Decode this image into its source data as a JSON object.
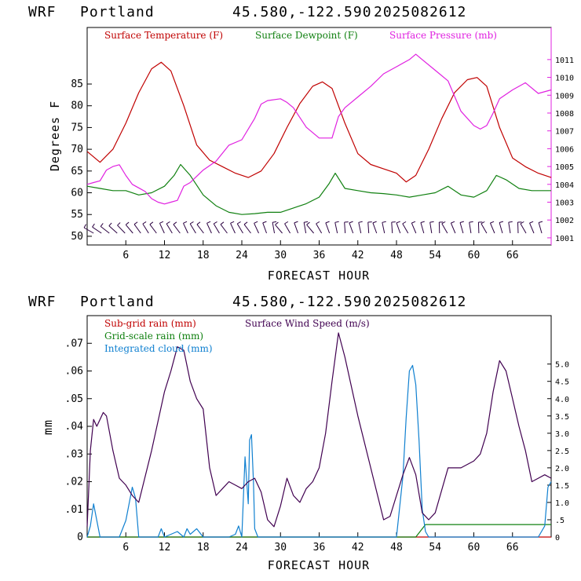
{
  "chart_data": [
    {
      "type": "line",
      "header": {
        "model": "WRF",
        "location": "Portland",
        "coords": "45.580,-122.590",
        "run": "2025082612"
      },
      "xlabel": "FORECAST HOUR",
      "ylabel": "Degrees F",
      "xlim": [
        0,
        72
      ],
      "ylim": [
        48,
        98
      ],
      "y2lim": [
        1000.6,
        1012.8
      ],
      "xticks": [
        6,
        12,
        18,
        24,
        30,
        36,
        42,
        48,
        54,
        60,
        66
      ],
      "yticks": [
        50,
        55,
        60,
        65,
        70,
        75,
        80,
        85
      ],
      "y2ticks": [
        1001,
        1002,
        1003,
        1004,
        1005,
        1006,
        1007,
        1008,
        1009,
        1010,
        1011
      ],
      "series": [
        {
          "name": "Surface Temperature (F)",
          "color": "#c00000",
          "axis": "left",
          "x": [
            0,
            2,
            4,
            6,
            8,
            10,
            11.5,
            13,
            15,
            17,
            19,
            21,
            23,
            25,
            27,
            29,
            31,
            33,
            35,
            36.5,
            38,
            40,
            42,
            44,
            46,
            48,
            49.5,
            51,
            53,
            55,
            57,
            59,
            60.5,
            62,
            64,
            66,
            68,
            70,
            72
          ],
          "values": [
            69.5,
            67,
            70,
            76,
            83,
            88.5,
            90,
            88,
            80,
            71,
            67.5,
            66,
            64.5,
            63.5,
            65,
            69,
            75,
            80.5,
            84.5,
            85.5,
            84,
            76,
            69,
            66.5,
            65.5,
            64.5,
            62.5,
            64,
            70,
            77,
            83,
            86,
            86.5,
            84.5,
            75,
            68,
            66,
            64.5,
            63.5
          ]
        },
        {
          "name": "Surface Dewpoint (F)",
          "color": "#108010",
          "axis": "left",
          "x": [
            0,
            2,
            4,
            6,
            8,
            10,
            12,
            13.5,
            14.5,
            16,
            18,
            20,
            22,
            24,
            26,
            28,
            30,
            32,
            34,
            36,
            37.5,
            38.5,
            40,
            42,
            44,
            46,
            48,
            50,
            52,
            54,
            56,
            58,
            60,
            62,
            63.5,
            65,
            67,
            69,
            72
          ],
          "values": [
            61.5,
            61,
            60.5,
            60.5,
            59.5,
            60,
            61.5,
            64,
            66.5,
            64,
            59.5,
            57,
            55.5,
            55,
            55.2,
            55.5,
            55.5,
            56.5,
            57.5,
            59,
            62,
            64.5,
            61,
            60.5,
            60,
            59.8,
            59.5,
            59,
            59.5,
            60,
            61.5,
            59.5,
            59,
            60.5,
            64,
            63,
            61,
            60.5,
            60.5
          ]
        },
        {
          "name": "Surface Pressure (mb)",
          "color": "#e020e0",
          "axis": "right",
          "x": [
            0,
            1,
            2,
            3,
            4,
            5,
            6,
            7,
            8,
            9,
            10,
            11,
            12,
            13,
            14,
            15,
            16,
            18,
            20,
            22,
            24,
            26,
            27,
            28,
            30,
            31,
            32,
            34,
            36,
            38,
            39,
            40,
            42,
            44,
            46,
            48,
            50,
            51,
            52,
            54,
            56,
            58,
            60,
            61,
            62,
            63,
            64,
            66,
            68,
            70,
            72
          ],
          "values": [
            1004,
            1004.1,
            1004.2,
            1004.8,
            1005,
            1005.1,
            1004.5,
            1004,
            1003.8,
            1003.6,
            1003.2,
            1003,
            1002.9,
            1003,
            1003.1,
            1003.9,
            1004.1,
            1004.8,
            1005.3,
            1006.2,
            1006.5,
            1007.7,
            1008.5,
            1008.7,
            1008.8,
            1008.6,
            1008.3,
            1007.2,
            1006.6,
            1006.6,
            1007.8,
            1008.3,
            1008.9,
            1009.5,
            1010.2,
            1010.6,
            1011.0,
            1011.3,
            1011.0,
            1010.4,
            1009.8,
            1008.1,
            1007.3,
            1007.1,
            1007.3,
            1008,
            1008.8,
            1009.3,
            1009.7,
            1009.1,
            1009.3
          ]
        }
      ],
      "wind_barbs": "row of wind barbs along the bottom of the panel"
    },
    {
      "type": "line",
      "header": {
        "model": "WRF",
        "location": "Portland",
        "coords": "45.580,-122.590",
        "run": "2025082612"
      },
      "xlabel": "FORECAST HOUR",
      "ylabel": "mm",
      "xlim": [
        0,
        72
      ],
      "ylim": [
        0,
        0.08
      ],
      "y2lim": [
        0,
        6.4
      ],
      "xticks": [
        6,
        12,
        18,
        24,
        30,
        36,
        42,
        48,
        54,
        60,
        66
      ],
      "yticks": [
        {
          "v": 0,
          "label": "0"
        },
        {
          "v": 0.01,
          "label": ".01"
        },
        {
          "v": 0.02,
          "label": ".02"
        },
        {
          "v": 0.03,
          "label": ".03"
        },
        {
          "v": 0.04,
          "label": ".04"
        },
        {
          "v": 0.05,
          "label": ".05"
        },
        {
          "v": 0.06,
          "label": ".06"
        },
        {
          "v": 0.07,
          "label": ".07"
        }
      ],
      "y2ticks": [
        {
          "v": 0,
          "label": "0"
        },
        {
          "v": 0.5,
          "label": ".5"
        },
        {
          "v": 1,
          "label": "1.0"
        },
        {
          "v": 1.5,
          "label": "1.5"
        },
        {
          "v": 2,
          "label": "2.0"
        },
        {
          "v": 2.5,
          "label": "2.5"
        },
        {
          "v": 3,
          "label": "3.0"
        },
        {
          "v": 3.5,
          "label": "3.5"
        },
        {
          "v": 4,
          "label": "4.0"
        },
        {
          "v": 4.5,
          "label": "4.5"
        },
        {
          "v": 5,
          "label": "5.0"
        }
      ],
      "series": [
        {
          "name": "Sub-grid rain (mm)",
          "color": "#c00000",
          "axis": "left",
          "x": [
            0,
            72
          ],
          "values": [
            0,
            0
          ]
        },
        {
          "name": "Grid-scale rain (mm)",
          "color": "#108010",
          "axis": "left",
          "x": [
            0,
            51,
            52.5,
            72
          ],
          "values": [
            0,
            0,
            0.0045,
            0.0045
          ]
        },
        {
          "name": "Integrated cloud (mm)",
          "color": "#1080d0",
          "axis": "left",
          "x": [
            0,
            0.5,
            1,
            1.5,
            2,
            3,
            5,
            6,
            6.5,
            7,
            7.5,
            8,
            9,
            11,
            11.5,
            12,
            13,
            14,
            15,
            15.5,
            16,
            17,
            18,
            20,
            22,
            23,
            23.5,
            24,
            24.5,
            25,
            25.2,
            25.5,
            25.8,
            26,
            26.5,
            27,
            48,
            49,
            49.5,
            50,
            50.5,
            51,
            51.5,
            52,
            52.5,
            53,
            70,
            71,
            71.5,
            72
          ],
          "values": [
            0,
            0.004,
            0.012,
            0.006,
            0,
            0,
            0,
            0.006,
            0.012,
            0.018,
            0.014,
            0,
            0,
            0,
            0.003,
            0,
            0.001,
            0.002,
            0,
            0.003,
            0.001,
            0.003,
            0,
            0,
            0,
            0.001,
            0.004,
            0,
            0.029,
            0.012,
            0.035,
            0.037,
            0.02,
            0.003,
            0,
            0,
            0,
            0.022,
            0.043,
            0.06,
            0.062,
            0.055,
            0.035,
            0.01,
            0.002,
            0,
            0,
            0.004,
            0.018,
            0.02
          ]
        },
        {
          "name": "Surface Wind Speed (m/s)",
          "color": "#400050",
          "axis": "right",
          "x": [
            0,
            0.5,
            1,
            1.5,
            2,
            2.5,
            3,
            4,
            5,
            6,
            7,
            8,
            10,
            12,
            13,
            14,
            15,
            16,
            17,
            18,
            19,
            20,
            21,
            22,
            23,
            24,
            25,
            26,
            27,
            28,
            29,
            30,
            31,
            32,
            33,
            34,
            35,
            36,
            37,
            38,
            39,
            40,
            42,
            44,
            46,
            47,
            48,
            49,
            50,
            51,
            52,
            53,
            54,
            56,
            58,
            60,
            61,
            62,
            63,
            64,
            65,
            66,
            67,
            68,
            69,
            70,
            71,
            72
          ],
          "values": [
            0.3,
            2.5,
            3.4,
            3.2,
            3.4,
            3.6,
            3.5,
            2.5,
            1.7,
            1.5,
            1.2,
            1.0,
            2.5,
            4.2,
            4.8,
            5.5,
            5.4,
            4.5,
            4.0,
            3.7,
            2.0,
            1.2,
            1.4,
            1.6,
            1.5,
            1.4,
            1.6,
            1.7,
            1.3,
            0.5,
            0.3,
            0.9,
            1.7,
            1.2,
            1.0,
            1.4,
            1.6,
            2.0,
            3.0,
            4.5,
            5.9,
            5.2,
            3.5,
            2.0,
            0.5,
            0.6,
            1.2,
            1.8,
            2.3,
            1.8,
            0.7,
            0.5,
            0.7,
            2.0,
            2.0,
            2.2,
            2.4,
            3.0,
            4.2,
            5.1,
            4.8,
            4.0,
            3.2,
            2.5,
            1.6,
            1.7,
            1.8,
            1.7
          ]
        }
      ]
    }
  ]
}
